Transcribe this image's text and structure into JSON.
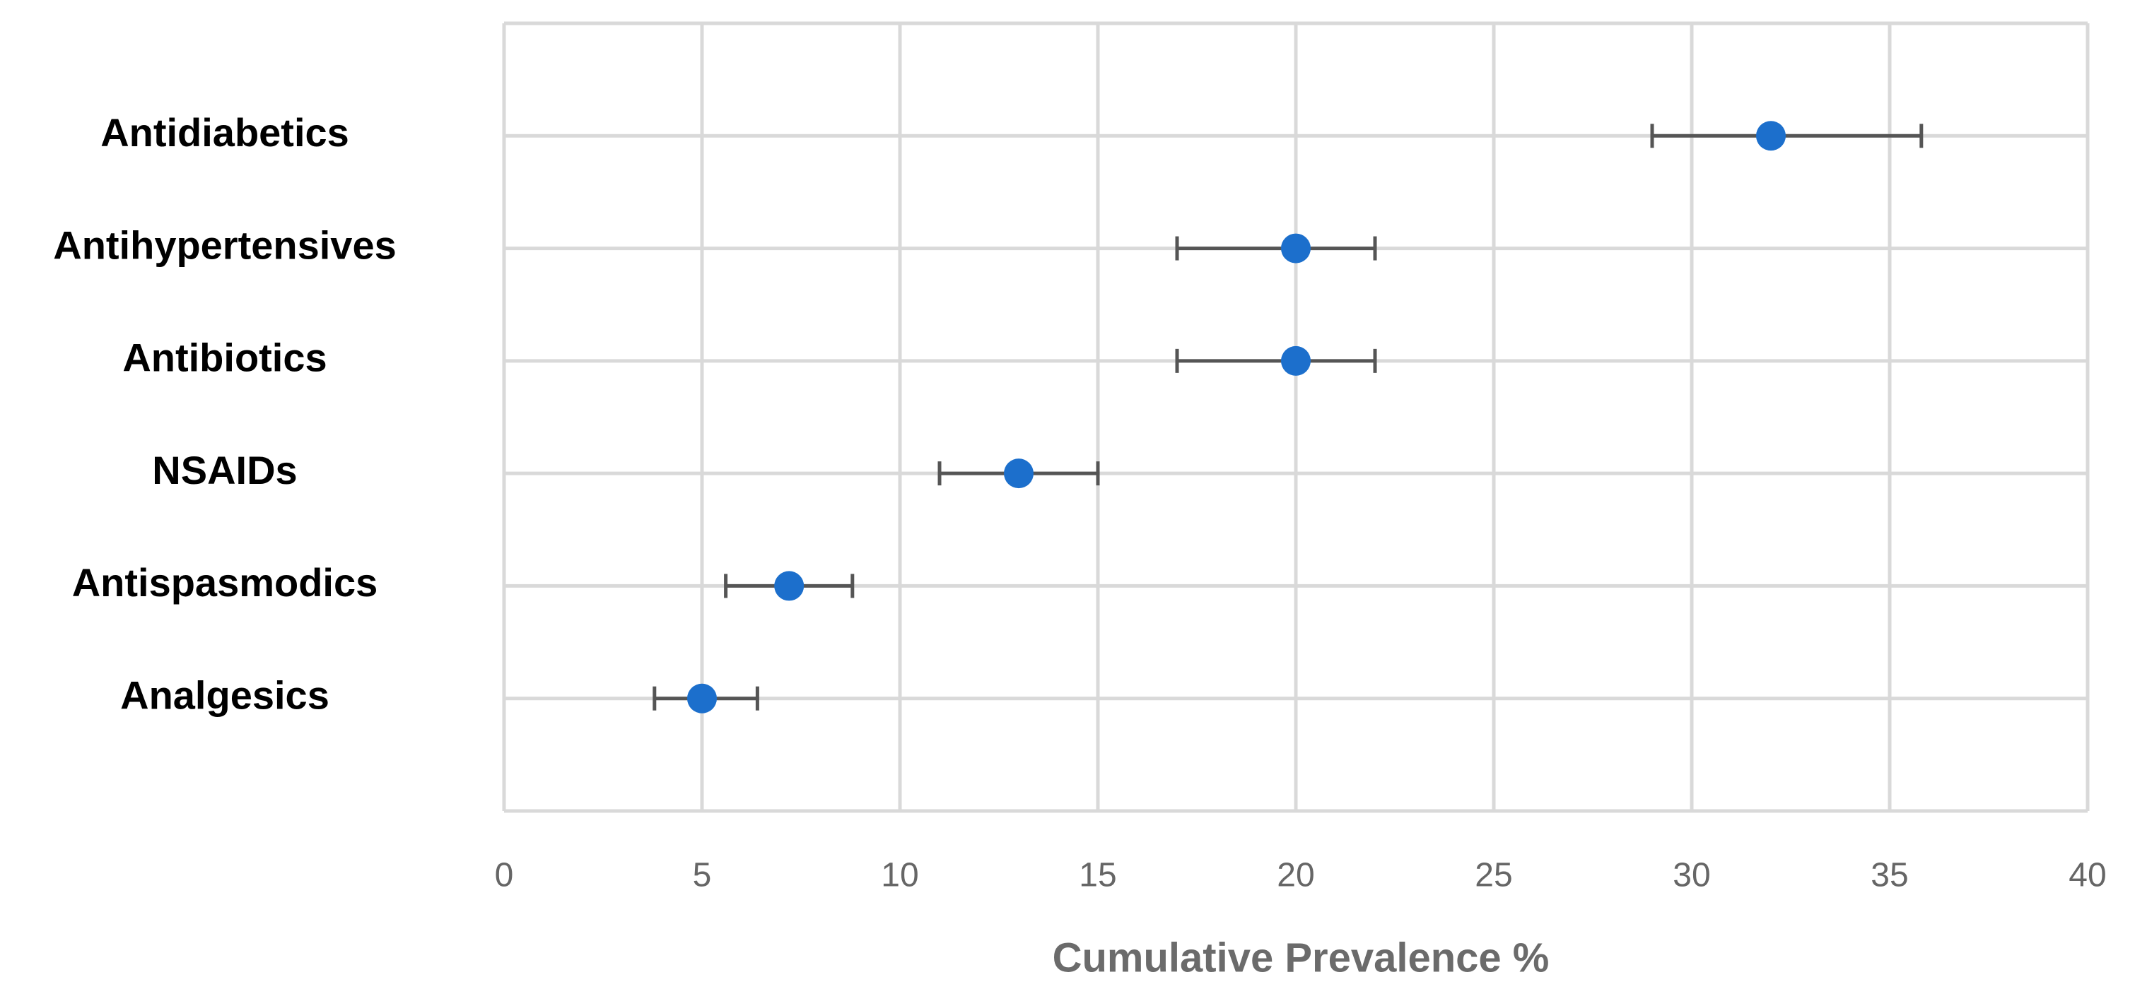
{
  "chart_data": {
    "type": "dot-errorbar",
    "x_label": "Cumulative Prevalence %",
    "categories": [
      "Antidiabetics",
      "Antihypertensives",
      "Antibiotics",
      "NSAIDs",
      "Antispasmodics",
      "Analgesics"
    ],
    "values": [
      32,
      20,
      20,
      13,
      7.2,
      5
    ],
    "ci_low": [
      29,
      17,
      17,
      11,
      5.6,
      3.8
    ],
    "ci_high": [
      35.8,
      22,
      22,
      15,
      8.8,
      6.4
    ],
    "color": "#1c6fcc",
    "error_color": "#555555",
    "xlim": [
      0,
      40
    ],
    "xticks": [
      0,
      5,
      10,
      15,
      20,
      25,
      30,
      35,
      40
    ],
    "grid": true
  }
}
